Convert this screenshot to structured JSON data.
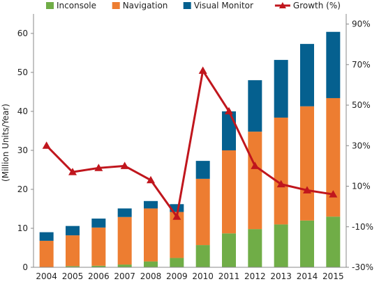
{
  "chart_data": {
    "type": "bar",
    "categories": [
      "2004",
      "2005",
      "2006",
      "2007",
      "2008",
      "2009",
      "2010",
      "2011",
      "2012",
      "2013",
      "2014",
      "2015"
    ],
    "series": [
      {
        "name": "Inconsole",
        "kind": "stacked-bar",
        "axis": "left",
        "color": "#70ad47",
        "values": [
          0,
          0.3,
          0.4,
          0.7,
          1.5,
          2.4,
          5.7,
          8.7,
          9.8,
          11.0,
          12.0,
          13.0
        ]
      },
      {
        "name": "Navigation",
        "kind": "stacked-bar",
        "axis": "left",
        "color": "#ed7d31",
        "values": [
          6.8,
          7.9,
          9.8,
          12.2,
          13.6,
          11.8,
          17.0,
          21.3,
          25.0,
          27.4,
          29.3,
          30.4
        ]
      },
      {
        "name": "Visual Monitor",
        "kind": "stacked-bar",
        "axis": "left",
        "color": "#05608f",
        "values": [
          2.2,
          2.4,
          2.3,
          2.2,
          1.9,
          2.0,
          4.6,
          10.0,
          13.2,
          14.8,
          16.0,
          17.0
        ]
      },
      {
        "name": "Growth (%)",
        "kind": "line",
        "axis": "right",
        "color": "#c0161d",
        "values": [
          30,
          17,
          19,
          20,
          13,
          -5,
          67,
          47,
          20,
          11,
          8,
          6
        ]
      }
    ],
    "ylabel": "(Million Units/Year)",
    "ylim": [
      0,
      65
    ],
    "yticks": [
      "0",
      "10",
      "20",
      "30",
      "40",
      "50",
      "60"
    ],
    "y2lim": [
      -30,
      95
    ],
    "y2ticks": [
      "-30%",
      "-10%",
      "10%",
      "30%",
      "50%",
      "70%",
      "90%"
    ],
    "legend_position": "top",
    "grid": false
  }
}
